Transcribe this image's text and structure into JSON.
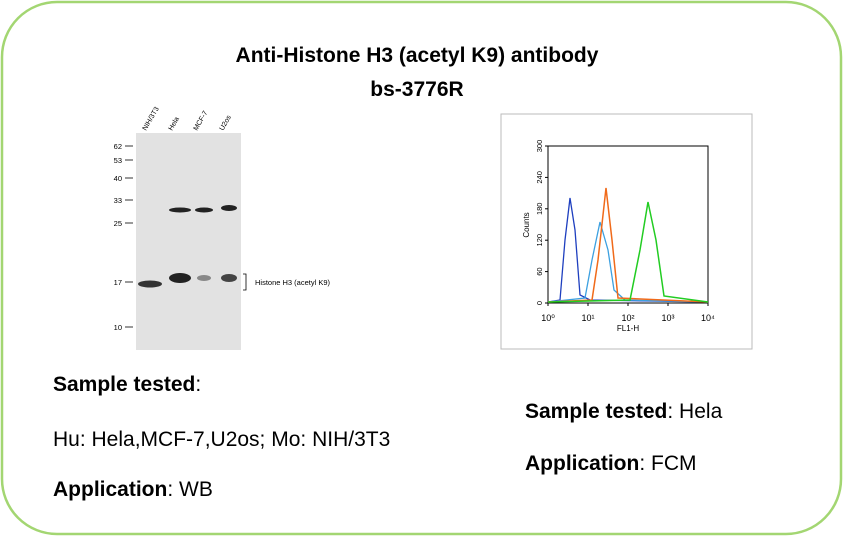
{
  "title": [
    "Anti-Histone H3 (acetyl K9) antibody",
    "bs-3776R"
  ],
  "western_blot": {
    "lanes": [
      "NIH/3T3",
      "Hela",
      "MCF-7",
      "U2os"
    ],
    "markers": [
      "62",
      "53",
      "40",
      "33",
      "25",
      "17",
      "10"
    ],
    "band_label": "Histone H3 (acetyl K9)"
  },
  "flow": {
    "y_label": "Counts",
    "x_label": "FL1-H",
    "yticks": [
      "0",
      "60",
      "120",
      "180",
      "240",
      "300"
    ],
    "xticks": [
      "10⁰",
      "10¹",
      "10²",
      "10³",
      "10⁴"
    ]
  },
  "left_info": {
    "sample_label": "Sample tested",
    "sample_value": ":",
    "species": "Hu: Hela,MCF-7,U2os; Mo: NIH/3T3",
    "application_label": "Application",
    "application_value": ": WB"
  },
  "right_info": {
    "sample_label": "Sample tested",
    "sample_value": ": Hela",
    "application_label": "Application",
    "application_value": ": FCM"
  }
}
